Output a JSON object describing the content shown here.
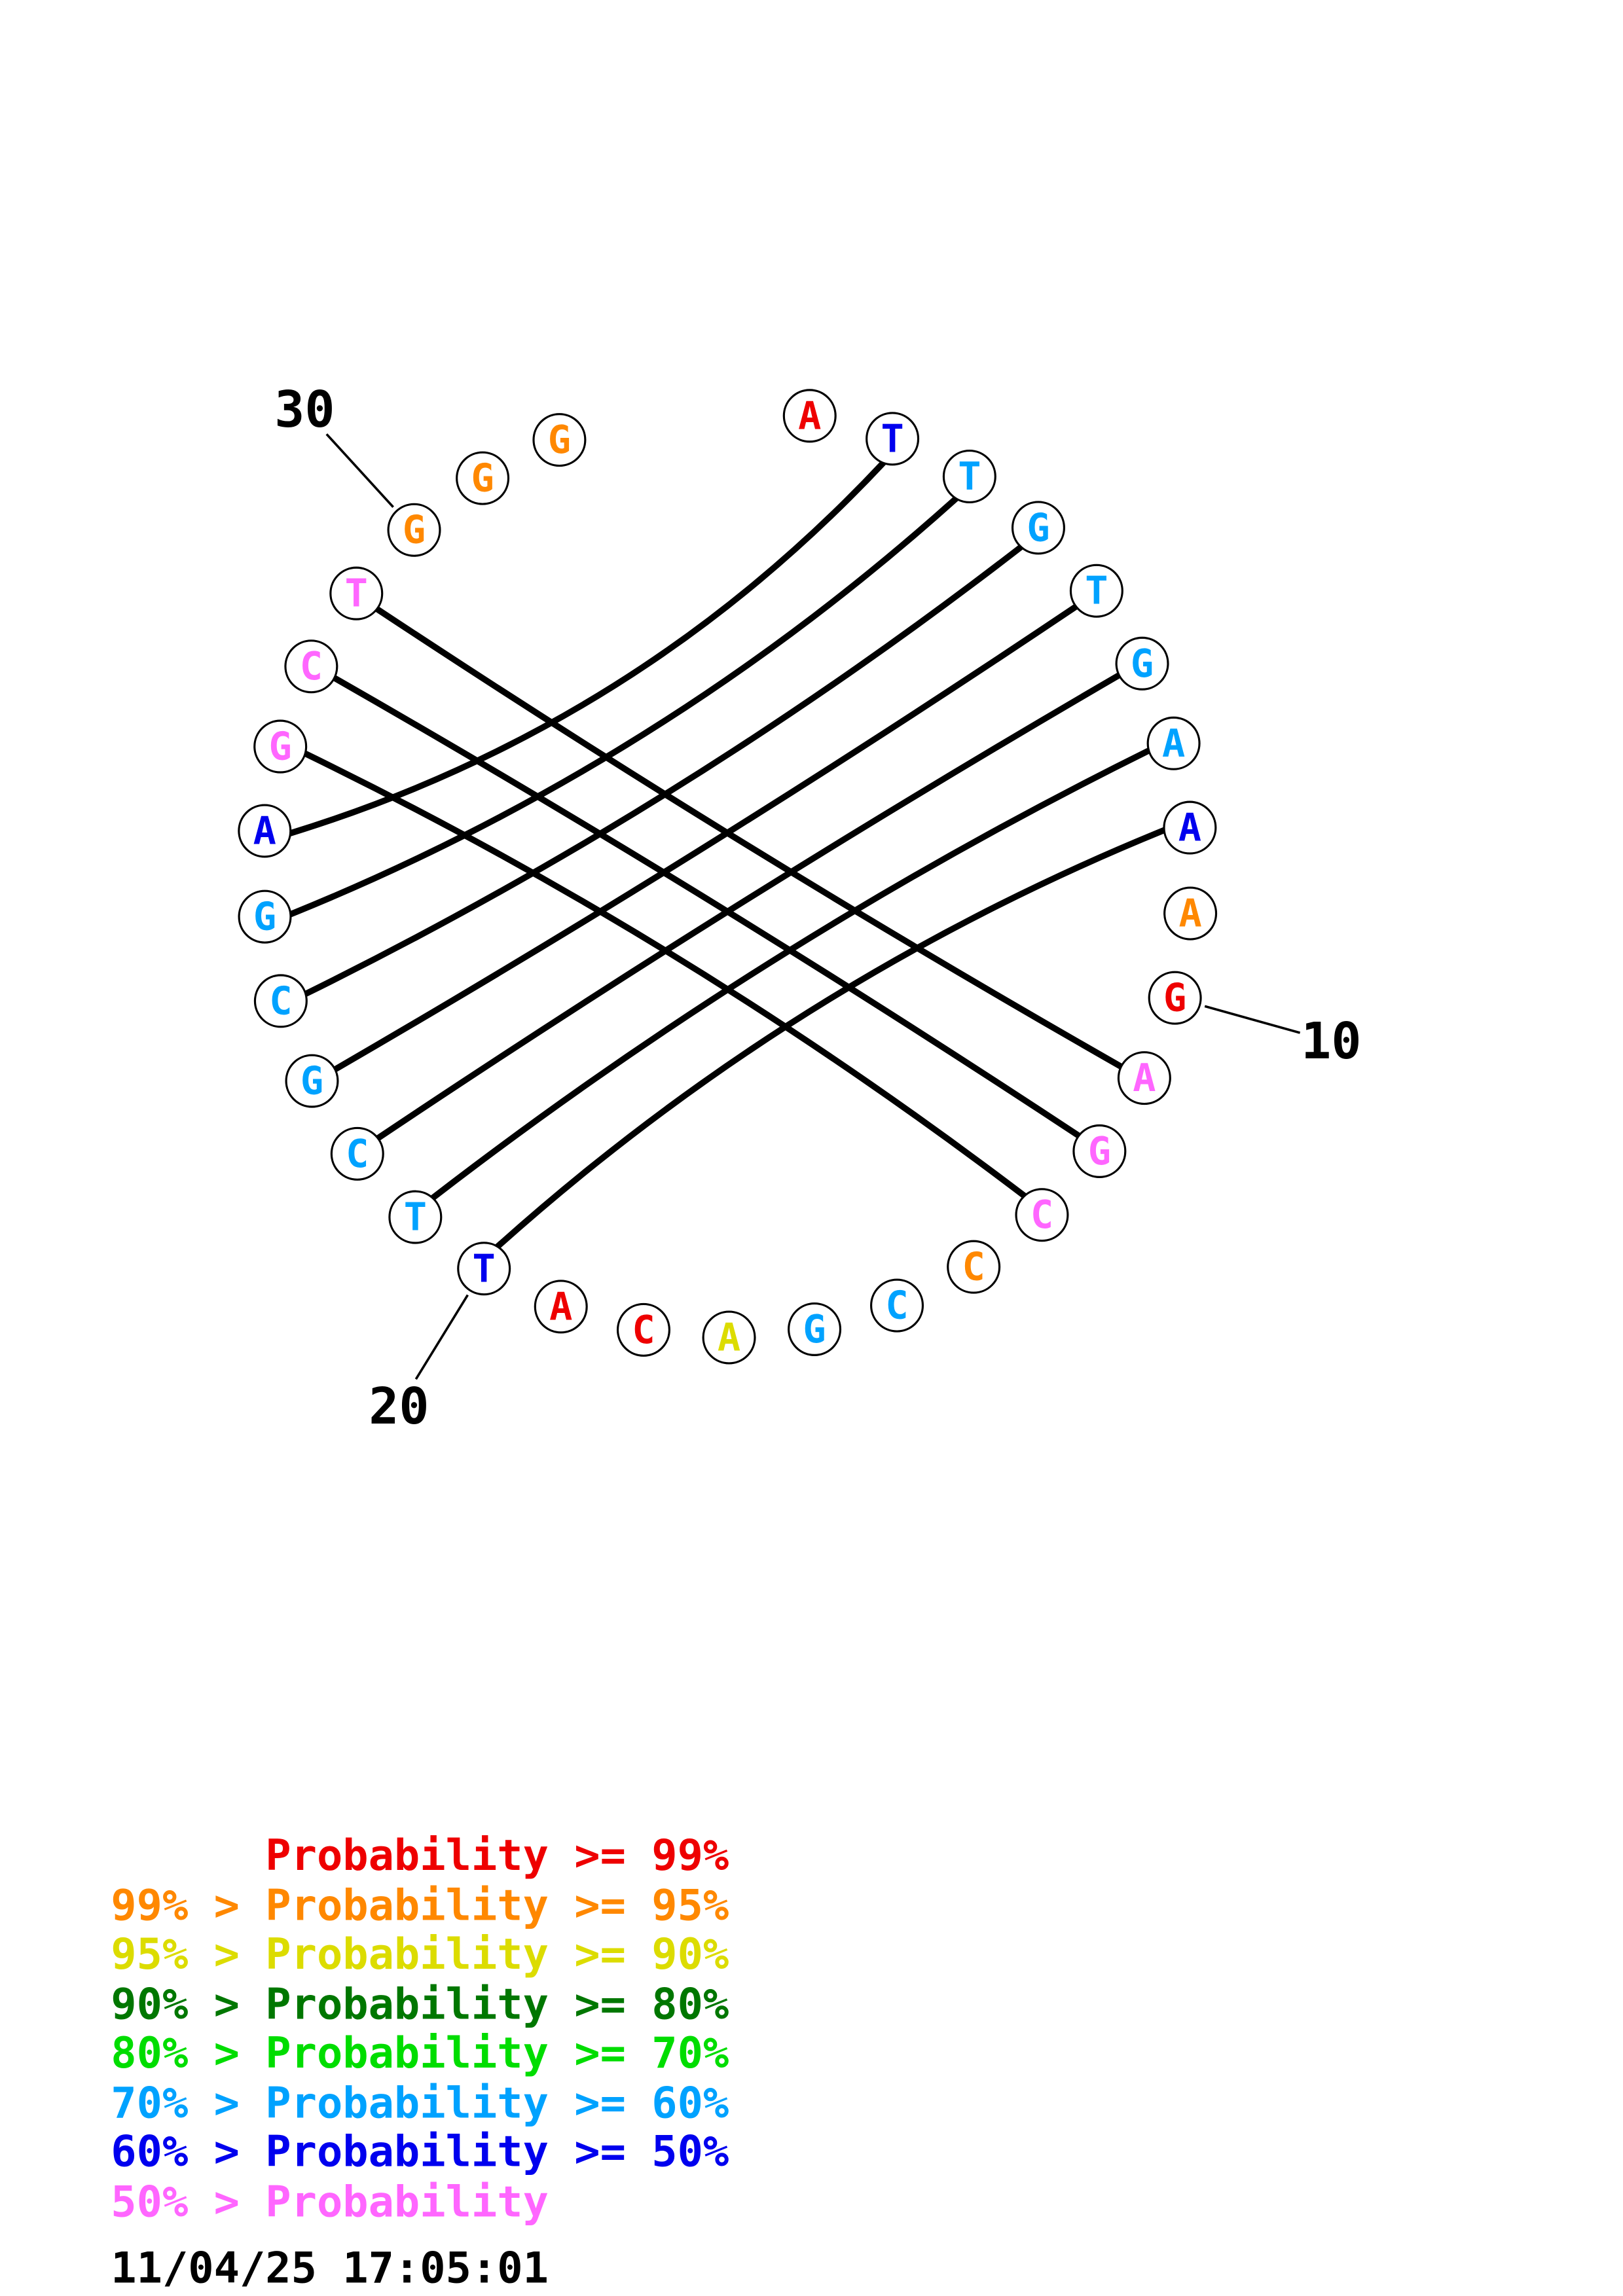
{
  "chart_data": {
    "type": "circle-plot",
    "description": "Nucleic acid base-pairing probability circle plot; letters around a circle with chords connecting paired bases",
    "sequence": [
      "A",
      "T",
      "T",
      "G",
      "T",
      "G",
      "A",
      "A",
      "A",
      "G",
      "A",
      "G",
      "C",
      "C",
      "C",
      "G",
      "A",
      "C",
      "A",
      "T",
      "T",
      "C",
      "G",
      "C",
      "G",
      "A",
      "G",
      "C",
      "T",
      "G",
      "G",
      "G"
    ],
    "nucleotide_colors": [
      "#ee0000",
      "#0000ee",
      "#00a2ff",
      "#00a2ff",
      "#00a2ff",
      "#00a2ff",
      "#00a2ff",
      "#0000ee",
      "#ff8800",
      "#ee0000",
      "#ff66ff",
      "#ff66ff",
      "#ff66ff",
      "#ff8800",
      "#00a2ff",
      "#00a2ff",
      "#dcdc00",
      "#ee0000",
      "#ee0000",
      "#0000ee",
      "#00a2ff",
      "#00a2ff",
      "#00a2ff",
      "#00a2ff",
      "#00a2ff",
      "#0000ee",
      "#ff66ff",
      "#ff66ff",
      "#ff66ff",
      "#ff8800",
      "#ff8800",
      "#ff8800"
    ],
    "pairs": [
      [
        2,
        26
      ],
      [
        3,
        25
      ],
      [
        4,
        24
      ],
      [
        5,
        23
      ],
      [
        6,
        22
      ],
      [
        7,
        21
      ],
      [
        8,
        20
      ],
      [
        11,
        29
      ],
      [
        12,
        28
      ],
      [
        13,
        27
      ]
    ],
    "pair_color": "#000000",
    "position_labels": [
      {
        "text": "30",
        "nucleotide": 30
      },
      {
        "text": "10",
        "nucleotide": 10
      },
      {
        "text": "20",
        "nucleotide": 20
      }
    ]
  },
  "legend": {
    "rows": [
      {
        "text": "      Probability >= 99%",
        "color": "#ee0000"
      },
      {
        "text": "99% > Probability >= 95%",
        "color": "#ff8800"
      },
      {
        "text": "95% > Probability >= 90%",
        "color": "#dcdc00"
      },
      {
        "text": "90% > Probability >= 80%",
        "color": "#007700"
      },
      {
        "text": "80% > Probability >= 70%",
        "color": "#00dd00"
      },
      {
        "text": "70% > Probability >= 60%",
        "color": "#00a2ff"
      },
      {
        "text": "60% > Probability >= 50%",
        "color": "#0000ee"
      },
      {
        "text": "50% > Probability",
        "color": "#ff66ff"
      }
    ]
  },
  "timestamp": "11/04/25 17:05:01"
}
